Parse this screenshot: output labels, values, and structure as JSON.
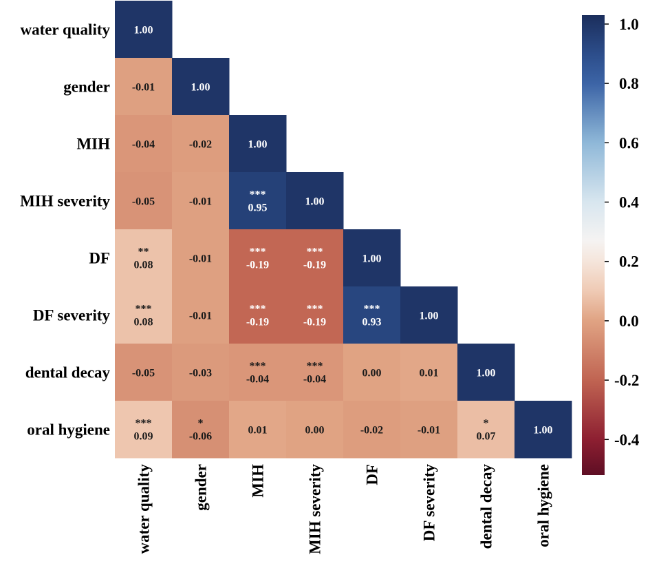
{
  "chart_data": {
    "type": "heatmap",
    "title": "",
    "labels": [
      "water quality",
      "gender",
      "MIH",
      "MIH severity",
      "DF",
      "DF severity",
      "dental decay",
      "oral hygiene"
    ],
    "values": [
      [
        1.0
      ],
      [
        -0.01,
        1.0
      ],
      [
        -0.04,
        -0.02,
        1.0
      ],
      [
        -0.05,
        -0.01,
        0.95,
        1.0
      ],
      [
        0.08,
        -0.01,
        -0.19,
        -0.19,
        1.0
      ],
      [
        0.08,
        -0.01,
        -0.19,
        -0.19,
        0.93,
        1.0
      ],
      [
        -0.05,
        -0.03,
        -0.04,
        -0.04,
        0.0,
        0.01,
        1.0
      ],
      [
        0.09,
        -0.06,
        0.01,
        0.0,
        -0.02,
        -0.01,
        0.07,
        1.0
      ]
    ],
    "value_labels": [
      [
        "1.00"
      ],
      [
        "-0.01",
        "1.00"
      ],
      [
        "-0.04",
        "-0.02",
        "1.00"
      ],
      [
        "-0.05",
        "-0.01",
        "0.95",
        "1.00"
      ],
      [
        "0.08",
        "-0.01",
        "-0.19",
        "-0.19",
        "1.00"
      ],
      [
        "0.08",
        "-0.01",
        "-0.19",
        "-0.19",
        "0.93",
        "1.00"
      ],
      [
        "-0.05",
        "-0.03",
        "-0.04",
        "-0.04",
        "0.00",
        "0.01",
        "1.00"
      ],
      [
        "0.09",
        "-0.06",
        "0.01",
        "0.00",
        "-0.02",
        "-0.01",
        "0.07",
        "1.00"
      ]
    ],
    "significance": [
      [
        ""
      ],
      [
        "",
        ""
      ],
      [
        "",
        "",
        ""
      ],
      [
        "",
        "",
        "***",
        ""
      ],
      [
        "**",
        "",
        "***",
        "***",
        ""
      ],
      [
        "***",
        "",
        "***",
        "***",
        "***",
        ""
      ],
      [
        "",
        "",
        "***",
        "***",
        "",
        "",
        ""
      ],
      [
        "***",
        "*",
        "",
        "",
        "",
        "",
        "*",
        ""
      ]
    ],
    "colorbar": {
      "range": [
        -0.52,
        1.03
      ],
      "ticks": [
        1.0,
        0.8,
        0.6,
        0.4,
        0.2,
        0.0,
        -0.2,
        -0.4
      ],
      "tick_labels": [
        "1.0",
        "0.8",
        "0.6",
        "0.4",
        "0.2",
        "0.0",
        "-0.2",
        "-0.4"
      ],
      "colormap": "RdBu_r",
      "stops": [
        [
          -0.52,
          "#5e0e24"
        ],
        [
          -0.4,
          "#8d1f31"
        ],
        [
          -0.2,
          "#c06452"
        ],
        [
          0.0,
          "#e0a383"
        ],
        [
          0.1,
          "#efcab4"
        ],
        [
          0.2,
          "#f5e5db"
        ],
        [
          0.27,
          "#f5f3f2"
        ],
        [
          0.4,
          "#d8e6ef"
        ],
        [
          0.6,
          "#8fb8d8"
        ],
        [
          0.8,
          "#3c64a6"
        ],
        [
          0.9,
          "#2c4d8a"
        ],
        [
          1.03,
          "#1b2e5c"
        ]
      ]
    },
    "text_colors": {
      "light": "#ffffff",
      "dark": "#1a1a1a"
    }
  }
}
